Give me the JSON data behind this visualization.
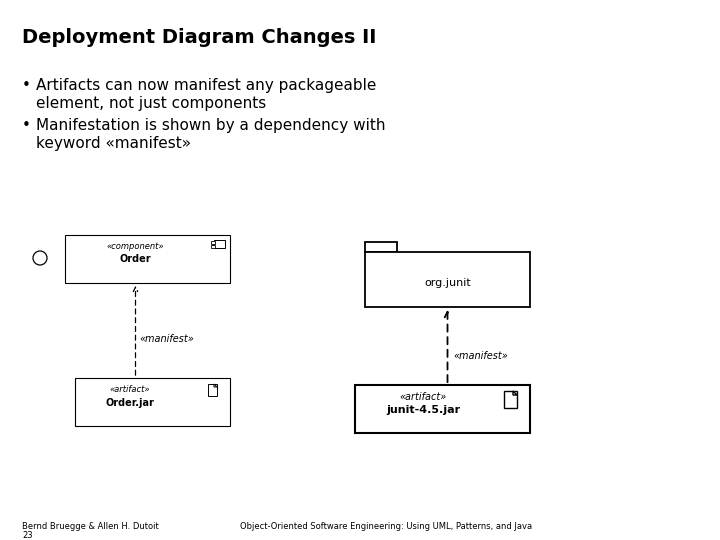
{
  "title": "Deployment Diagram Changes II",
  "bullet1_line1": "Artifacts can now manifest any packageable",
  "bullet1_line2": "element, not just components",
  "bullet2_line1": "Manifestation is shown by a dependency with",
  "bullet2_line2": "keyword «manifest»",
  "footer_left_1": "Bernd Bruegge & Allen H. Dutoit",
  "footer_left_2": "23",
  "footer_right": "Object-Oriented Software Engineering: Using UML, Patterns, and Java",
  "bg_color": "#ffffff",
  "text_color": "#000000",
  "title_fontsize": 14,
  "bullet_fontsize": 11,
  "footer_fontsize": 6,
  "diag_small_fontsize": 6,
  "diag_label_fontsize": 7,
  "diag_name_fontsize": 7,
  "diag_pkg_fontsize": 8
}
